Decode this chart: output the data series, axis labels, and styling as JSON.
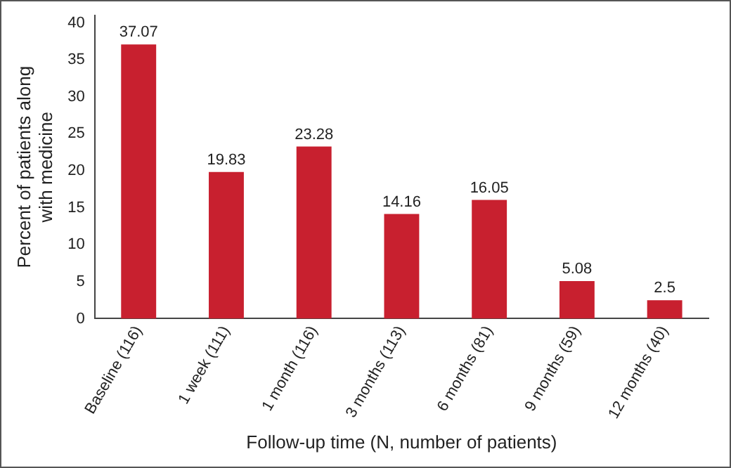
{
  "chart_data": {
    "type": "bar",
    "xlabel": "Follow-up time (N, number of patients)",
    "ylabel": "Percent of patients along\nwith medicine",
    "categories": [
      "Baseline (116)",
      "1 week (111)",
      "1 month (116)",
      "3 months (113)",
      "6 months (81)",
      "9 months (59)",
      "12 months (40)"
    ],
    "values": [
      37.07,
      19.83,
      23.28,
      14.16,
      16.05,
      5.08,
      2.5
    ],
    "color": "#c8202f",
    "ylim": [
      0,
      41
    ],
    "yticks": [
      0,
      5,
      10,
      15,
      20,
      25,
      30,
      35,
      40
    ],
    "grid": false,
    "data_labels": true
  }
}
